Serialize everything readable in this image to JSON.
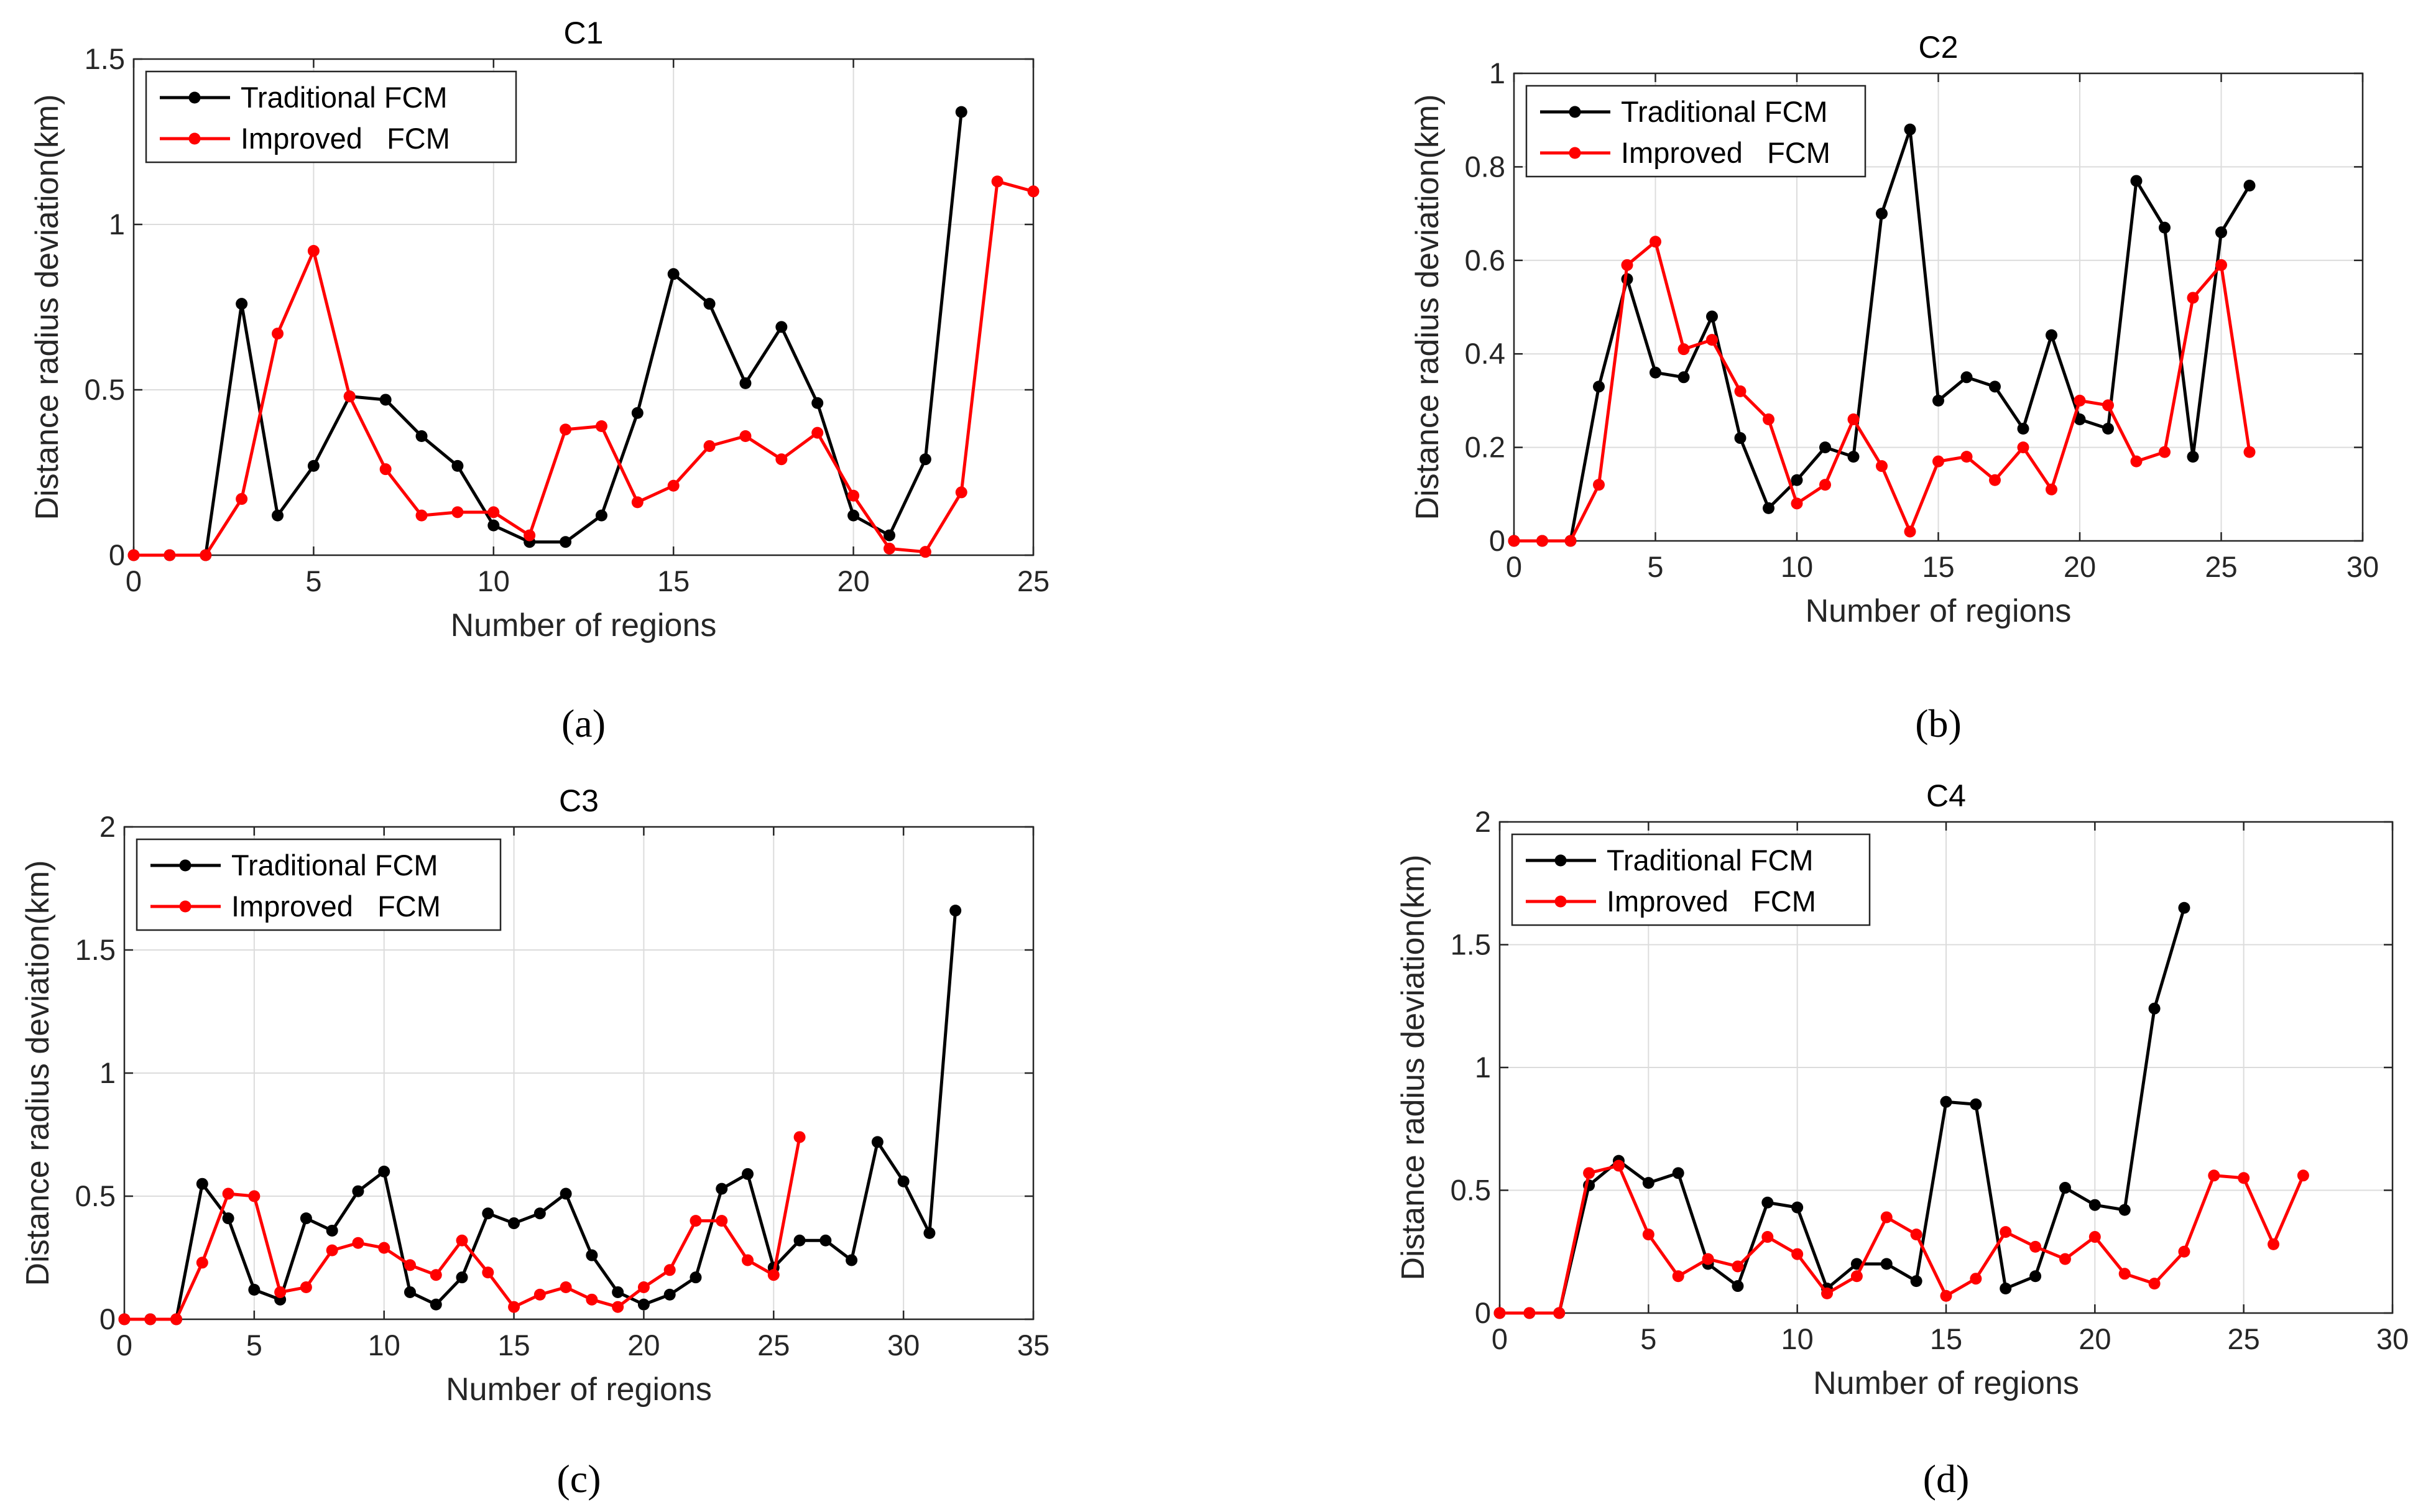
{
  "chart_data": [
    {
      "id": "C1",
      "type": "line",
      "title": "C1",
      "xlabel": "Number of regions",
      "ylabel": "Distance radius deviation(km)",
      "caption": {
        "letter": "a",
        "text": "(a)"
      },
      "xlim": [
        0,
        25
      ],
      "ylim": [
        0,
        1.5
      ],
      "xticks": [
        0,
        5,
        10,
        15,
        20,
        25
      ],
      "xtick_labels": [
        "0",
        "5",
        "10",
        "15",
        "20",
        "25"
      ],
      "yticks": [
        0,
        0.5,
        1,
        1.5
      ],
      "ytick_labels": [
        "0",
        "0.5",
        "1",
        "1.5"
      ],
      "grid": true,
      "legend_position": "top-left",
      "series": [
        {
          "name": "Traditional FCM",
          "label": "Traditional FCM",
          "color": "#000000",
          "x": [
            0,
            1,
            2,
            3,
            4,
            5,
            6,
            7,
            8,
            9,
            10,
            11,
            12,
            13,
            14,
            15,
            16,
            17,
            18,
            19,
            20,
            21,
            22,
            23
          ],
          "values": [
            0,
            0,
            0,
            0.76,
            0.12,
            0.27,
            0.48,
            0.47,
            0.36,
            0.27,
            0.09,
            0.04,
            0.04,
            0.12,
            0.43,
            0.85,
            0.76,
            0.52,
            0.69,
            0.46,
            0.12,
            0.06,
            0.29,
            1.34
          ]
        },
        {
          "name": "Improved FCM",
          "label": "Improved   FCM",
          "color": "#ff0000",
          "x": [
            0,
            1,
            2,
            3,
            4,
            5,
            6,
            7,
            8,
            9,
            10,
            11,
            12,
            13,
            14,
            15,
            16,
            17,
            18,
            19,
            20,
            21,
            22,
            23,
            24,
            25
          ],
          "values": [
            0,
            0,
            0,
            0.17,
            0.67,
            0.92,
            0.48,
            0.26,
            0.12,
            0.13,
            0.13,
            0.06,
            0.38,
            0.39,
            0.16,
            0.21,
            0.33,
            0.36,
            0.29,
            0.37,
            0.18,
            0.02,
            0.01,
            0.19,
            1.13,
            1.1
          ]
        }
      ]
    },
    {
      "id": "C2",
      "type": "line",
      "title": "C2",
      "xlabel": "Number of regions",
      "ylabel": "Distance radius deviation(km)",
      "caption": {
        "letter": "b",
        "text": "(b)"
      },
      "xlim": [
        0,
        30
      ],
      "ylim": [
        0,
        1
      ],
      "xticks": [
        0,
        5,
        10,
        15,
        20,
        25,
        30
      ],
      "xtick_labels": [
        "0",
        "5",
        "10",
        "15",
        "20",
        "25",
        "30"
      ],
      "yticks": [
        0,
        0.2,
        0.4,
        0.6,
        0.8,
        1
      ],
      "ytick_labels": [
        "0",
        "0.2",
        "0.4",
        "0.6",
        "0.8",
        "1"
      ],
      "grid": true,
      "legend_position": "top-left",
      "series": [
        {
          "name": "Traditional FCM",
          "label": "Traditional FCM",
          "color": "#000000",
          "x": [
            0,
            1,
            2,
            3,
            4,
            5,
            6,
            7,
            8,
            9,
            10,
            11,
            12,
            13,
            14,
            15,
            16,
            17,
            18,
            19,
            20,
            21,
            22,
            23,
            24,
            25,
            26
          ],
          "values": [
            0,
            0,
            0,
            0.33,
            0.56,
            0.36,
            0.35,
            0.48,
            0.22,
            0.07,
            0.13,
            0.2,
            0.18,
            0.7,
            0.88,
            0.3,
            0.35,
            0.33,
            0.24,
            0.44,
            0.26,
            0.24,
            0.77,
            0.67,
            0.18,
            0.66,
            0.76
          ]
        },
        {
          "name": "Improved FCM",
          "label": "Improved   FCM",
          "color": "#ff0000",
          "x": [
            0,
            1,
            2,
            3,
            4,
            5,
            6,
            7,
            8,
            9,
            10,
            11,
            12,
            13,
            14,
            15,
            16,
            17,
            18,
            19,
            20,
            21,
            22,
            23,
            24,
            25,
            26
          ],
          "values": [
            0,
            0,
            0,
            0.12,
            0.59,
            0.64,
            0.41,
            0.43,
            0.32,
            0.26,
            0.08,
            0.12,
            0.26,
            0.16,
            0.02,
            0.17,
            0.18,
            0.13,
            0.2,
            0.11,
            0.3,
            0.29,
            0.17,
            0.19,
            0.52,
            0.59,
            0.19
          ]
        }
      ]
    },
    {
      "id": "C3",
      "type": "line",
      "title": "C3",
      "xlabel": "Number of regions",
      "ylabel": "Distance radius deviation(km)",
      "caption": {
        "letter": "c",
        "text": "(c)"
      },
      "xlim": [
        0,
        35
      ],
      "ylim": [
        0,
        2
      ],
      "xticks": [
        0,
        5,
        10,
        15,
        20,
        25,
        30,
        35
      ],
      "xtick_labels": [
        "0",
        "5",
        "10",
        "15",
        "20",
        "25",
        "30",
        "35"
      ],
      "yticks": [
        0,
        0.5,
        1,
        1.5,
        2
      ],
      "ytick_labels": [
        "0",
        "0.5",
        "1",
        "1.5",
        "2"
      ],
      "grid": true,
      "legend_position": "top-left",
      "series": [
        {
          "name": "Traditional FCM",
          "label": "Traditional FCM",
          "color": "#000000",
          "x": [
            0,
            1,
            2,
            3,
            4,
            5,
            6,
            7,
            8,
            9,
            10,
            11,
            12,
            13,
            14,
            15,
            16,
            17,
            18,
            19,
            20,
            21,
            22,
            23,
            24,
            25,
            26,
            27,
            28,
            29,
            30,
            31,
            32
          ],
          "values": [
            0,
            0,
            0,
            0.55,
            0.41,
            0.12,
            0.08,
            0.41,
            0.36,
            0.52,
            0.6,
            0.11,
            0.06,
            0.17,
            0.43,
            0.39,
            0.43,
            0.51,
            0.26,
            0.11,
            0.06,
            0.1,
            0.17,
            0.53,
            0.59,
            0.21,
            0.32,
            0.32,
            0.24,
            0.72,
            0.56,
            0.35,
            1.66
          ]
        },
        {
          "name": "Improved FCM",
          "label": "Improved   FCM",
          "color": "#ff0000",
          "x": [
            0,
            1,
            2,
            3,
            4,
            5,
            6,
            7,
            8,
            9,
            10,
            11,
            12,
            13,
            14,
            15,
            16,
            17,
            18,
            19,
            20,
            21,
            22,
            23,
            24,
            25,
            26
          ],
          "values": [
            0,
            0,
            0,
            0.23,
            0.51,
            0.5,
            0.11,
            0.13,
            0.28,
            0.31,
            0.29,
            0.22,
            0.18,
            0.32,
            0.19,
            0.05,
            0.1,
            0.13,
            0.08,
            0.05,
            0.13,
            0.2,
            0.4,
            0.4,
            0.24,
            0.18,
            0.74
          ]
        }
      ]
    },
    {
      "id": "C4",
      "type": "line",
      "title": "C4",
      "xlabel": "Number of regions",
      "ylabel": "Distance radius deviation(km)",
      "caption": {
        "letter": "d",
        "text": "(d)"
      },
      "xlim": [
        0,
        30
      ],
      "ylim": [
        0,
        2
      ],
      "xticks": [
        0,
        5,
        10,
        15,
        20,
        25,
        30
      ],
      "xtick_labels": [
        "0",
        "5",
        "10",
        "15",
        "20",
        "25",
        "30"
      ],
      "yticks": [
        0,
        0.5,
        1,
        1.5,
        2
      ],
      "ytick_labels": [
        "0",
        "0.5",
        "1",
        "1.5",
        "2"
      ],
      "grid": true,
      "legend_position": "top-left",
      "series": [
        {
          "name": "Traditional FCM",
          "label": "Traditional FCM",
          "color": "#000000",
          "x": [
            0,
            1,
            2,
            3,
            4,
            5,
            6,
            7,
            8,
            9,
            10,
            11,
            12,
            13,
            14,
            15,
            16,
            17,
            18,
            19,
            20,
            21,
            22,
            23
          ],
          "values": [
            0,
            0,
            0,
            0.52,
            0.62,
            0.53,
            0.57,
            0.2,
            0.11,
            0.45,
            0.43,
            0.1,
            0.2,
            0.2,
            0.13,
            0.86,
            0.85,
            0.1,
            0.15,
            0.51,
            0.44,
            0.42,
            1.24,
            1.65
          ]
        },
        {
          "name": "Improved FCM",
          "label": "Improved   FCM",
          "color": "#ff0000",
          "x": [
            0,
            1,
            2,
            3,
            4,
            5,
            6,
            7,
            8,
            9,
            10,
            11,
            12,
            13,
            14,
            15,
            16,
            17,
            18,
            19,
            20,
            21,
            22,
            23,
            24,
            25,
            26,
            27
          ],
          "values": [
            0,
            0,
            0,
            0.57,
            0.6,
            0.32,
            0.15,
            0.22,
            0.19,
            0.31,
            0.24,
            0.08,
            0.15,
            0.39,
            0.32,
            0.07,
            0.14,
            0.33,
            0.27,
            0.22,
            0.31,
            0.16,
            0.12,
            0.25,
            0.56,
            0.55,
            0.28,
            0.56
          ]
        }
      ]
    }
  ]
}
